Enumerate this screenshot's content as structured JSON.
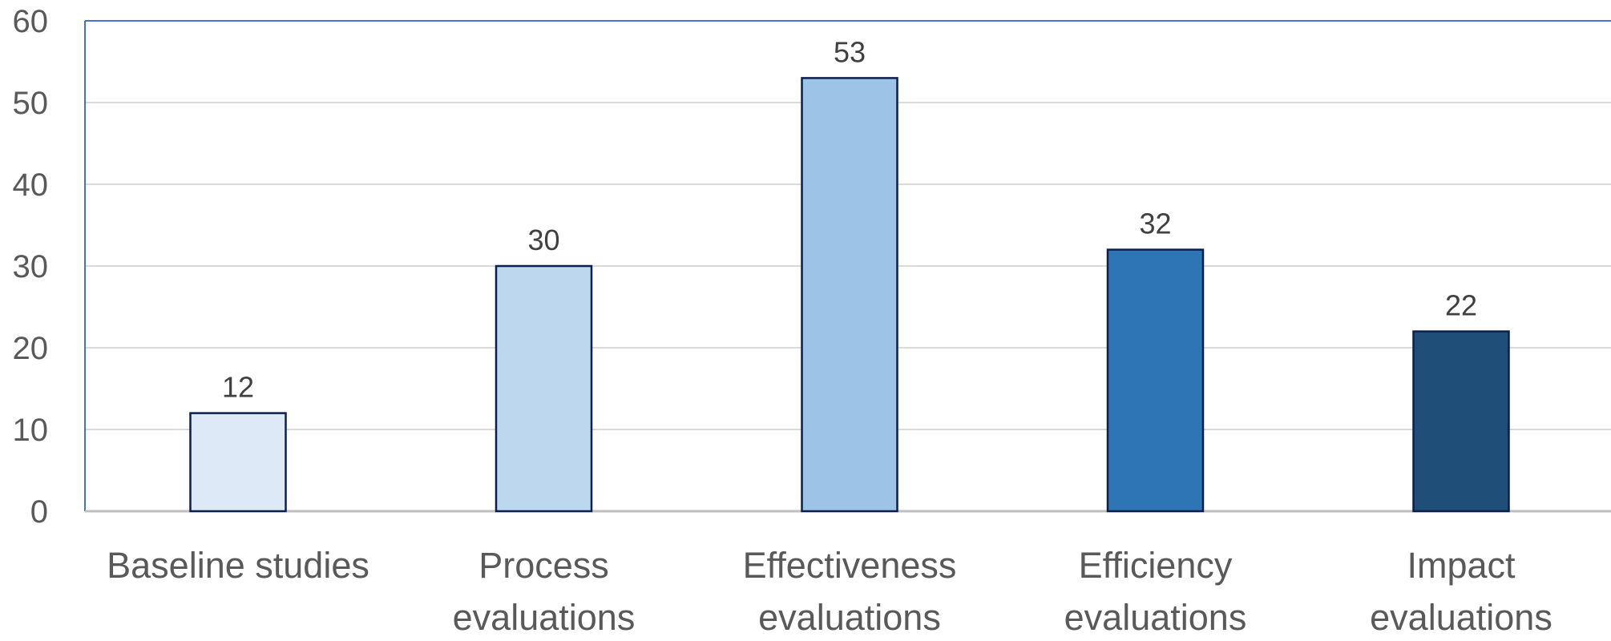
{
  "chart_data": {
    "type": "bar",
    "categories": [
      [
        "Baseline studies"
      ],
      [
        "Process",
        "evaluations"
      ],
      [
        "Effectiveness",
        "evaluations"
      ],
      [
        "Efficiency",
        "evaluations"
      ],
      [
        "Impact",
        "evaluations"
      ]
    ],
    "values": [
      12,
      30,
      53,
      32,
      22
    ],
    "data_labels": [
      "12",
      "30",
      "53",
      "32",
      "22"
    ],
    "bar_colors": [
      "#dde9f6",
      "#bdd7ee",
      "#9dc3e6",
      "#2e75b6",
      "#1f4e79"
    ],
    "bar_border_color": "#0b1f4d",
    "ylim": [
      0,
      60
    ],
    "yticks": [
      "0",
      "10",
      "20",
      "30",
      "40",
      "50",
      "60"
    ],
    "grid": true,
    "grid_color": "#d9d9d9",
    "frame_color": "#4472c4",
    "text_color": "#595959",
    "label_color": "#404040",
    "title": "",
    "xlabel": "",
    "ylabel": ""
  }
}
